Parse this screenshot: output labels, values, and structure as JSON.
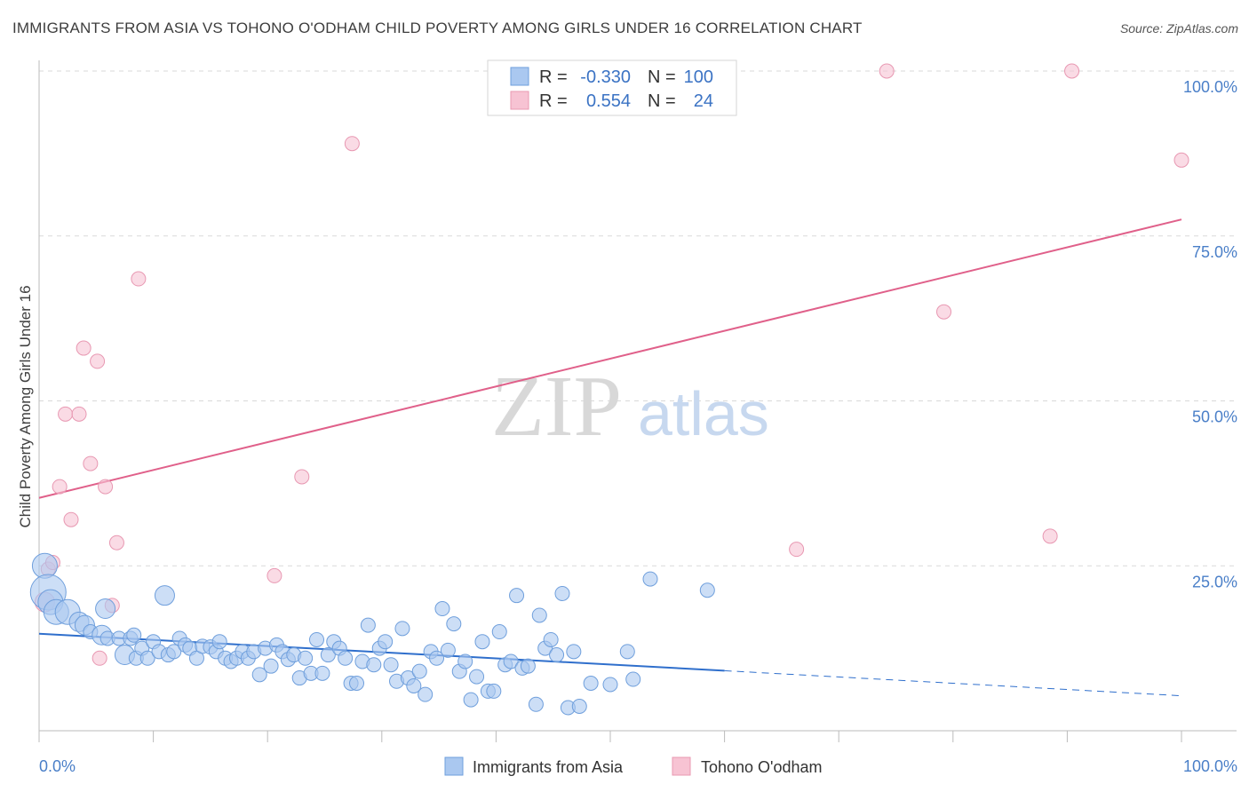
{
  "title": "IMMIGRANTS FROM ASIA VS TOHONO O'ODHAM CHILD POVERTY AMONG GIRLS UNDER 16 CORRELATION CHART",
  "source": "Source: ZipAtlas.com",
  "watermark": {
    "zip": "ZIP",
    "atlas": "atlas"
  },
  "colors": {
    "blue_fill": "#aac8f0",
    "blue_stroke": "#6f9fdc",
    "blue_line": "#2f6fcc",
    "pink_fill": "#f7c3d3",
    "pink_stroke": "#e898b2",
    "pink_line": "#e0608a",
    "grid": "#d9d9d9",
    "tick_text": "#4a7fc8"
  },
  "legend": {
    "r_label": "R =",
    "n_label": "N =",
    "series": [
      {
        "r": "-0.330",
        "n": "100"
      },
      {
        "r": "0.554",
        "n": "24"
      }
    ]
  },
  "chart_data": {
    "type": "scatter",
    "title": "IMMIGRANTS FROM ASIA VS TOHONO O'ODHAM CHILD POVERTY AMONG GIRLS UNDER 16 CORRELATION CHART",
    "xlabel": "",
    "ylabel": "Child Poverty Among Girls Under 16",
    "xlim": [
      0,
      100
    ],
    "ylim": [
      0,
      100
    ],
    "x_tick_labels": [
      "0.0%",
      "100.0%"
    ],
    "y_ticks": [
      25,
      50,
      75,
      100
    ],
    "y_tick_labels": [
      "25.0%",
      "50.0%",
      "75.0%",
      "100.0%"
    ],
    "grid": true,
    "legend_position": "top-center",
    "series": [
      {
        "name": "Immigrants from Asia",
        "r": -0.33,
        "n": 100,
        "trend": {
          "x0": 0,
          "y0": 14.7,
          "x1": 60,
          "y1": 9.1,
          "dashed_to_x": 100,
          "dashed_to_y": 5.3
        },
        "points": [
          {
            "x": 0.5,
            "y": 25.0,
            "s": 3
          },
          {
            "x": 0.8,
            "y": 21.0,
            "s": 4
          },
          {
            "x": 1.0,
            "y": 19.5,
            "s": 3
          },
          {
            "x": 1.5,
            "y": 18.0,
            "s": 3
          },
          {
            "x": 2.5,
            "y": 18.0,
            "s": 3
          },
          {
            "x": 3.5,
            "y": 16.5,
            "s": 2
          },
          {
            "x": 4.0,
            "y": 16.0,
            "s": 2
          },
          {
            "x": 4.5,
            "y": 15.0,
            "s": 1
          },
          {
            "x": 5.5,
            "y": 14.5,
            "s": 2
          },
          {
            "x": 6.0,
            "y": 14.0,
            "s": 1
          },
          {
            "x": 5.8,
            "y": 18.5,
            "s": 2
          },
          {
            "x": 7.0,
            "y": 14.0,
            "s": 1
          },
          {
            "x": 7.5,
            "y": 11.5,
            "s": 2
          },
          {
            "x": 8.0,
            "y": 14.0,
            "s": 1
          },
          {
            "x": 8.3,
            "y": 14.5,
            "s": 1
          },
          {
            "x": 8.5,
            "y": 11.0,
            "s": 1
          },
          {
            "x": 9.0,
            "y": 12.5,
            "s": 1
          },
          {
            "x": 9.5,
            "y": 11.0,
            "s": 1
          },
          {
            "x": 10.0,
            "y": 13.5,
            "s": 1
          },
          {
            "x": 10.5,
            "y": 12.0,
            "s": 1
          },
          {
            "x": 11.0,
            "y": 20.5,
            "s": 2
          },
          {
            "x": 11.3,
            "y": 11.5,
            "s": 1
          },
          {
            "x": 11.8,
            "y": 12.0,
            "s": 1
          },
          {
            "x": 12.3,
            "y": 14.0,
            "s": 1
          },
          {
            "x": 12.8,
            "y": 13.0,
            "s": 1
          },
          {
            "x": 13.2,
            "y": 12.5,
            "s": 1
          },
          {
            "x": 13.8,
            "y": 11.0,
            "s": 1
          },
          {
            "x": 14.3,
            "y": 12.8,
            "s": 1
          },
          {
            "x": 15.0,
            "y": 12.7,
            "s": 1
          },
          {
            "x": 15.5,
            "y": 12.0,
            "s": 1
          },
          {
            "x": 15.8,
            "y": 13.5,
            "s": 1
          },
          {
            "x": 16.3,
            "y": 11.0,
            "s": 1
          },
          {
            "x": 16.8,
            "y": 10.5,
            "s": 1
          },
          {
            "x": 17.3,
            "y": 11.0,
            "s": 1
          },
          {
            "x": 17.8,
            "y": 12.0,
            "s": 1
          },
          {
            "x": 18.3,
            "y": 11.0,
            "s": 1
          },
          {
            "x": 18.8,
            "y": 12.0,
            "s": 1
          },
          {
            "x": 19.3,
            "y": 8.5,
            "s": 1
          },
          {
            "x": 19.8,
            "y": 12.5,
            "s": 1
          },
          {
            "x": 20.3,
            "y": 9.8,
            "s": 1
          },
          {
            "x": 20.8,
            "y": 13.0,
            "s": 1
          },
          {
            "x": 21.3,
            "y": 12.0,
            "s": 1
          },
          {
            "x": 21.8,
            "y": 10.8,
            "s": 1
          },
          {
            "x": 22.3,
            "y": 11.5,
            "s": 1
          },
          {
            "x": 22.8,
            "y": 8.0,
            "s": 1
          },
          {
            "x": 23.3,
            "y": 11.0,
            "s": 1
          },
          {
            "x": 23.8,
            "y": 8.7,
            "s": 1
          },
          {
            "x": 24.3,
            "y": 13.8,
            "s": 1
          },
          {
            "x": 24.8,
            "y": 8.7,
            "s": 1
          },
          {
            "x": 25.3,
            "y": 11.5,
            "s": 1
          },
          {
            "x": 25.8,
            "y": 13.5,
            "s": 1
          },
          {
            "x": 26.3,
            "y": 12.5,
            "s": 1
          },
          {
            "x": 26.8,
            "y": 11.0,
            "s": 1
          },
          {
            "x": 27.3,
            "y": 7.2,
            "s": 1
          },
          {
            "x": 27.8,
            "y": 7.2,
            "s": 1
          },
          {
            "x": 28.3,
            "y": 10.5,
            "s": 1
          },
          {
            "x": 28.8,
            "y": 16.0,
            "s": 1
          },
          {
            "x": 29.3,
            "y": 10.0,
            "s": 1
          },
          {
            "x": 29.8,
            "y": 12.5,
            "s": 1
          },
          {
            "x": 30.3,
            "y": 13.5,
            "s": 1
          },
          {
            "x": 30.8,
            "y": 10.0,
            "s": 1
          },
          {
            "x": 31.3,
            "y": 7.5,
            "s": 1
          },
          {
            "x": 31.8,
            "y": 15.5,
            "s": 1
          },
          {
            "x": 32.3,
            "y": 8.0,
            "s": 1
          },
          {
            "x": 32.8,
            "y": 6.8,
            "s": 1
          },
          {
            "x": 33.3,
            "y": 9.0,
            "s": 1
          },
          {
            "x": 33.8,
            "y": 5.5,
            "s": 1
          },
          {
            "x": 34.3,
            "y": 12.0,
            "s": 1
          },
          {
            "x": 34.8,
            "y": 11.0,
            "s": 1
          },
          {
            "x": 35.3,
            "y": 18.5,
            "s": 1
          },
          {
            "x": 35.8,
            "y": 12.2,
            "s": 1
          },
          {
            "x": 36.3,
            "y": 16.2,
            "s": 1
          },
          {
            "x": 36.8,
            "y": 9.0,
            "s": 1
          },
          {
            "x": 37.3,
            "y": 10.5,
            "s": 1
          },
          {
            "x": 37.8,
            "y": 4.7,
            "s": 1
          },
          {
            "x": 38.3,
            "y": 8.2,
            "s": 1
          },
          {
            "x": 38.8,
            "y": 13.5,
            "s": 1
          },
          {
            "x": 39.3,
            "y": 6.0,
            "s": 1
          },
          {
            "x": 39.8,
            "y": 6.0,
            "s": 1
          },
          {
            "x": 40.3,
            "y": 15.0,
            "s": 1
          },
          {
            "x": 40.8,
            "y": 10.0,
            "s": 1
          },
          {
            "x": 41.3,
            "y": 10.5,
            "s": 1
          },
          {
            "x": 41.8,
            "y": 20.5,
            "s": 1
          },
          {
            "x": 42.3,
            "y": 9.5,
            "s": 1
          },
          {
            "x": 42.8,
            "y": 9.8,
            "s": 1
          },
          {
            "x": 43.5,
            "y": 4.0,
            "s": 1
          },
          {
            "x": 43.8,
            "y": 17.5,
            "s": 1
          },
          {
            "x": 44.3,
            "y": 12.5,
            "s": 1
          },
          {
            "x": 44.8,
            "y": 13.8,
            "s": 1
          },
          {
            "x": 45.3,
            "y": 11.5,
            "s": 1
          },
          {
            "x": 45.8,
            "y": 20.8,
            "s": 1
          },
          {
            "x": 46.3,
            "y": 3.5,
            "s": 1
          },
          {
            "x": 46.8,
            "y": 12.0,
            "s": 1
          },
          {
            "x": 47.3,
            "y": 3.7,
            "s": 1
          },
          {
            "x": 48.3,
            "y": 7.2,
            "s": 1
          },
          {
            "x": 50.0,
            "y": 7.0,
            "s": 1
          },
          {
            "x": 51.5,
            "y": 12.0,
            "s": 1
          },
          {
            "x": 52.0,
            "y": 7.8,
            "s": 1
          },
          {
            "x": 53.5,
            "y": 23.0,
            "s": 1
          },
          {
            "x": 58.5,
            "y": 21.3,
            "s": 1
          }
        ]
      },
      {
        "name": "Tohono O'odham",
        "r": 0.554,
        "n": 24,
        "trend": {
          "x0": 0,
          "y0": 35.3,
          "x1": 100,
          "y1": 77.5
        },
        "points": [
          {
            "x": 0.5,
            "y": 19.5,
            "s": 2
          },
          {
            "x": 0.8,
            "y": 24.5,
            "s": 1
          },
          {
            "x": 1.2,
            "y": 25.5,
            "s": 1
          },
          {
            "x": 1.8,
            "y": 37.0,
            "s": 1
          },
          {
            "x": 2.3,
            "y": 48.0,
            "s": 1
          },
          {
            "x": 2.8,
            "y": 32.0,
            "s": 1
          },
          {
            "x": 3.5,
            "y": 48.0,
            "s": 1
          },
          {
            "x": 3.9,
            "y": 58.0,
            "s": 1
          },
          {
            "x": 4.5,
            "y": 40.5,
            "s": 1
          },
          {
            "x": 5.1,
            "y": 56.0,
            "s": 1
          },
          {
            "x": 5.3,
            "y": 11.0,
            "s": 1
          },
          {
            "x": 5.8,
            "y": 37.0,
            "s": 1
          },
          {
            "x": 6.4,
            "y": 19.0,
            "s": 1
          },
          {
            "x": 6.8,
            "y": 28.5,
            "s": 1
          },
          {
            "x": 8.7,
            "y": 68.5,
            "s": 1
          },
          {
            "x": 20.6,
            "y": 23.5,
            "s": 1
          },
          {
            "x": 23.0,
            "y": 38.5,
            "s": 1
          },
          {
            "x": 27.4,
            "y": 89.0,
            "s": 1
          },
          {
            "x": 66.3,
            "y": 27.5,
            "s": 1
          },
          {
            "x": 74.2,
            "y": 100.0,
            "s": 1
          },
          {
            "x": 79.2,
            "y": 63.5,
            "s": 1
          },
          {
            "x": 88.5,
            "y": 29.5,
            "s": 1
          },
          {
            "x": 90.4,
            "y": 100.0,
            "s": 1
          },
          {
            "x": 100.0,
            "y": 86.5,
            "s": 1
          }
        ]
      }
    ]
  }
}
